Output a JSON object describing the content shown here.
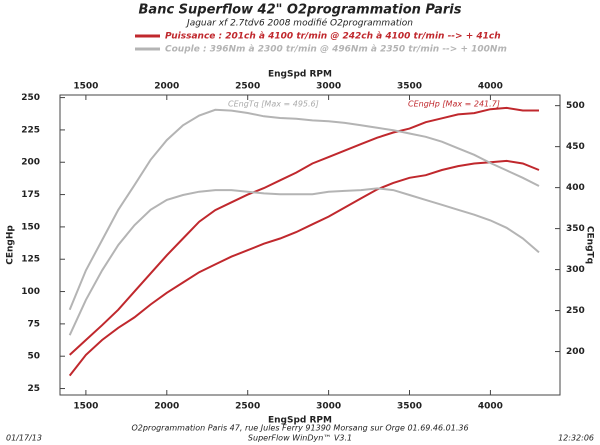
{
  "chart_data": {
    "type": "line",
    "title": "Banc Superflow 42\" O2programmation Paris",
    "subtitle": "Jaguar xf 2.7tdv6 2008 modifié O2programmation",
    "legend": [
      {
        "label": "Puissance : 201ch à 4100 tr/min @ 242ch à 4100 tr/min --> + 41ch",
        "color": "#c0282d"
      },
      {
        "label": "Couple :  396Nm à 2300 tr/min @ 496Nm à 2350 tr/min --> + 100Nm",
        "color": "#b4b4b4"
      }
    ],
    "x_label": "EngSpd RPM",
    "y_label": "CEngHp",
    "y2_label": "CEngTq",
    "annotations": [
      "CEngTq [Max = 495.6]",
      "CEngHp [Max = 241.7]"
    ],
    "footer": [
      "O2programmation Paris 47, rue Jules Ferry 91390 Morsang sur Orge 01.69.46.01.36",
      "SuperFlow WinDyn™ V3.1"
    ],
    "date": "01/17/13",
    "time": "12:32:06",
    "x": [
      1400,
      1500,
      1600,
      1700,
      1800,
      1900,
      2000,
      2100,
      2200,
      2300,
      2400,
      2500,
      2600,
      2700,
      2800,
      2900,
      3000,
      3100,
      3200,
      3300,
      3400,
      3500,
      3600,
      3700,
      3800,
      3900,
      4000,
      4100,
      4200,
      4300
    ],
    "xlim": [
      1340,
      4430
    ],
    "xticks": [
      1500,
      2000,
      2500,
      3000,
      3500,
      4000
    ],
    "ylim": [
      20,
      252
    ],
    "yticks": [
      25,
      50,
      75,
      100,
      125,
      150,
      175,
      200,
      225,
      250
    ],
    "y2lim": [
      147,
      513
    ],
    "y2ticks": [
      200,
      250,
      300,
      350,
      400,
      450,
      500
    ],
    "series": [
      {
        "color": "#c0282d",
        "axis": "y",
        "values": [
          51,
          62.5,
          74,
          86,
          100,
          114,
          128,
          141,
          154,
          163,
          169,
          175,
          180,
          186,
          192,
          199,
          204,
          209,
          214,
          219,
          223,
          226,
          231,
          234,
          237,
          238,
          241,
          242,
          240,
          240
        ]
      },
      {
        "color": "#c0282d",
        "axis": "y",
        "values": [
          35,
          51,
          62.5,
          72,
          80,
          90,
          99,
          107,
          115,
          121,
          127,
          132,
          137,
          141,
          146,
          152,
          158,
          165,
          172,
          179,
          184,
          188,
          190,
          194,
          197,
          199,
          200,
          201,
          199,
          194
        ]
      },
      {
        "color": "#b4b4b4",
        "axis": "y2",
        "values": [
          251,
          299,
          336,
          373,
          403,
          434,
          458,
          476,
          488,
          495,
          494,
          491,
          487,
          485,
          484,
          482,
          481,
          479,
          476,
          473,
          470,
          466,
          462,
          456,
          448,
          440,
          430,
          421,
          412,
          402
        ]
      },
      {
        "color": "#b4b4b4",
        "axis": "y2",
        "values": [
          220,
          263,
          299,
          330,
          354,
          373,
          385,
          391,
          395,
          397,
          397,
          395,
          393,
          392,
          392,
          392,
          395,
          396,
          397,
          399,
          397,
          391,
          385,
          379,
          373,
          367,
          360,
          351,
          338,
          321
        ]
      }
    ]
  }
}
